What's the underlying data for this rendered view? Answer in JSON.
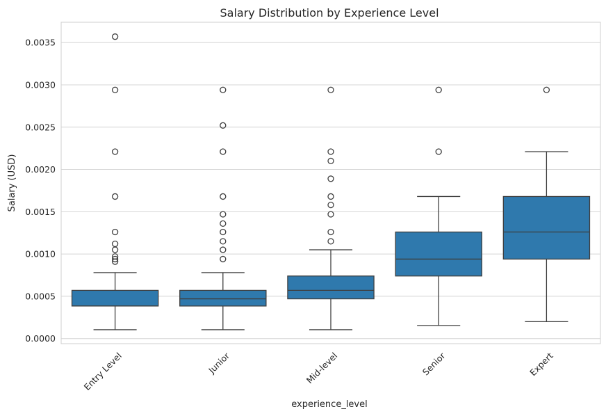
{
  "chart_data": {
    "type": "box",
    "title": "Salary Distribution by Experience Level",
    "xlabel": "experience_level",
    "ylabel": "Salary (USD)",
    "ylim": [
      -6e-05,
      0.00374
    ],
    "yticks": [
      "0.0000",
      "0.0005",
      "0.0010",
      "0.0015",
      "0.0020",
      "0.0025",
      "0.0030",
      "0.0035"
    ],
    "ytick_values": [
      0,
      0.0005,
      0.001,
      0.0015,
      0.002,
      0.0025,
      0.003,
      0.0035
    ],
    "grid": true,
    "box_color": "#2f79ad",
    "categories": [
      "Entry Level",
      "Junior",
      "Mid-level",
      "Senior",
      "Expert"
    ],
    "boxes": [
      {
        "whisker_low": 0.000105,
        "q1": 0.000385,
        "median": 0.000385,
        "q3": 0.00057,
        "whisker_high": 0.00078,
        "outliers": [
          0.00357,
          0.00294,
          0.00221,
          0.00168,
          0.00126,
          0.00112,
          0.00105,
          0.00097,
          0.00094,
          0.00091
        ]
      },
      {
        "whisker_low": 0.000105,
        "q1": 0.000385,
        "median": 0.00047,
        "q3": 0.00057,
        "whisker_high": 0.00078,
        "outliers": [
          0.00294,
          0.00252,
          0.00221,
          0.00168,
          0.00147,
          0.00136,
          0.00126,
          0.00115,
          0.00105,
          0.00094
        ]
      },
      {
        "whisker_low": 0.000105,
        "q1": 0.00047,
        "median": 0.00057,
        "q3": 0.00074,
        "whisker_high": 0.00105,
        "outliers": [
          0.00294,
          0.00221,
          0.0021,
          0.00189,
          0.00168,
          0.00158,
          0.00147,
          0.00126,
          0.00115
        ]
      },
      {
        "whisker_low": 0.000155,
        "q1": 0.00074,
        "median": 0.00094,
        "q3": 0.00126,
        "whisker_high": 0.00168,
        "outliers": [
          0.00294,
          0.00221
        ]
      },
      {
        "whisker_low": 0.0002,
        "q1": 0.00094,
        "median": 0.00126,
        "q3": 0.00168,
        "whisker_high": 0.00221,
        "outliers": [
          0.00294
        ]
      }
    ]
  }
}
